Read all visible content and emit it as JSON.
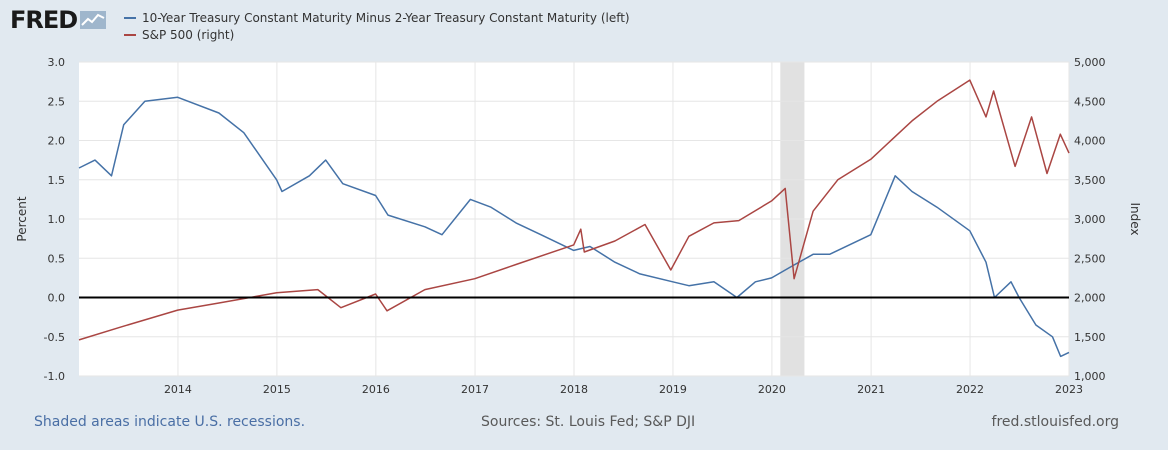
{
  "logo": {
    "text": "FRED"
  },
  "legend": [
    {
      "label": "10-Year Treasury Constant Maturity Minus 2-Year Treasury Constant Maturity (left)",
      "color": "#4572a7"
    },
    {
      "label": "S&P 500 (right)",
      "color": "#aa4643"
    }
  ],
  "footer": {
    "recession_note": "Shaded areas indicate U.S. recessions.",
    "sources": "Sources: St. Louis Fed; S&P DJI",
    "site": "fred.stlouisfed.org"
  },
  "chart_data": {
    "type": "line",
    "x_range": [
      "2013-01-01",
      "2023-01-01"
    ],
    "x_ticks": [
      "2014",
      "2015",
      "2016",
      "2017",
      "2018",
      "2019",
      "2020",
      "2021",
      "2022",
      "2023"
    ],
    "left_axis": {
      "label": "Percent",
      "ylim": [
        -1.0,
        3.0
      ],
      "ticks": [
        "-1.0",
        "-0.5",
        "0.0",
        "0.5",
        "1.0",
        "1.5",
        "2.0",
        "2.5",
        "3.0"
      ]
    },
    "right_axis": {
      "label": "Index",
      "ylim": [
        1000,
        5000
      ],
      "ticks": [
        "1,000",
        "1,500",
        "2,000",
        "2,500",
        "3,000",
        "3,500",
        "4,000",
        "4,500",
        "5,000"
      ]
    },
    "grid": true,
    "zero_line": 0,
    "recessions": [
      {
        "start": "2020-02-01",
        "end": "2020-04-30"
      }
    ],
    "series": [
      {
        "name": "10-Year Treasury Constant Maturity Minus 2-Year Treasury Constant Maturity (left)",
        "axis": "left",
        "color": "#4572a7",
        "x": [
          "2013-01-01",
          "2013-03-01",
          "2013-05-01",
          "2013-06-15",
          "2013-09-01",
          "2013-12-31",
          "2014-06-01",
          "2014-09-01",
          "2014-12-31",
          "2015-01-20",
          "2015-05-01",
          "2015-06-30",
          "2015-09-01",
          "2015-12-31",
          "2016-02-15",
          "2016-06-30",
          "2016-09-01",
          "2016-12-15",
          "2017-03-01",
          "2017-06-01",
          "2017-09-01",
          "2017-12-31",
          "2018-03-01",
          "2018-06-01",
          "2018-09-01",
          "2018-12-31",
          "2019-03-01",
          "2019-06-01",
          "2019-08-25",
          "2019-11-01",
          "2019-12-31",
          "2020-03-15",
          "2020-06-01",
          "2020-08-01",
          "2020-12-31",
          "2021-03-31",
          "2021-06-01",
          "2021-09-01",
          "2021-12-31",
          "2022-03-01",
          "2022-04-01",
          "2022-06-01",
          "2022-07-01",
          "2022-09-01",
          "2022-11-01",
          "2022-12-01",
          "2023-01-01"
        ],
        "values": [
          1.65,
          1.75,
          1.55,
          2.2,
          2.5,
          2.55,
          2.35,
          2.1,
          1.5,
          1.35,
          1.55,
          1.75,
          1.45,
          1.3,
          1.05,
          0.9,
          0.8,
          1.25,
          1.15,
          0.95,
          0.8,
          0.6,
          0.65,
          0.45,
          0.3,
          0.2,
          0.15,
          0.2,
          0.0,
          0.2,
          0.25,
          0.4,
          0.55,
          0.55,
          0.8,
          1.55,
          1.35,
          1.15,
          0.85,
          0.45,
          0.0,
          0.2,
          0.0,
          -0.35,
          -0.5,
          -0.75,
          -0.7
        ]
      },
      {
        "name": "S&P 500 (right)",
        "axis": "right",
        "color": "#aa4643",
        "x": [
          "2013-01-01",
          "2013-06-01",
          "2013-12-31",
          "2014-06-01",
          "2014-12-31",
          "2015-06-01",
          "2015-08-25",
          "2015-12-31",
          "2016-02-11",
          "2016-06-30",
          "2016-12-31",
          "2017-06-01",
          "2017-12-31",
          "2018-01-26",
          "2018-02-08",
          "2018-06-01",
          "2018-09-20",
          "2018-12-24",
          "2019-03-01",
          "2019-06-01",
          "2019-09-01",
          "2019-12-31",
          "2020-02-19",
          "2020-03-23",
          "2020-06-01",
          "2020-08-31",
          "2020-12-31",
          "2021-06-01",
          "2021-09-01",
          "2021-12-31",
          "2022-03-01",
          "2022-03-29",
          "2022-06-16",
          "2022-08-16",
          "2022-10-12",
          "2022-11-30",
          "2023-01-01"
        ],
        "values": [
          1460,
          1620,
          1840,
          1930,
          2060,
          2100,
          1870,
          2045,
          1830,
          2100,
          2240,
          2420,
          2670,
          2870,
          2580,
          2720,
          2930,
          2350,
          2780,
          2950,
          2980,
          3230,
          3390,
          2240,
          3100,
          3500,
          3760,
          4250,
          4500,
          4770,
          4300,
          4630,
          3670,
          4300,
          3580,
          4080,
          3840
        ]
      }
    ]
  }
}
